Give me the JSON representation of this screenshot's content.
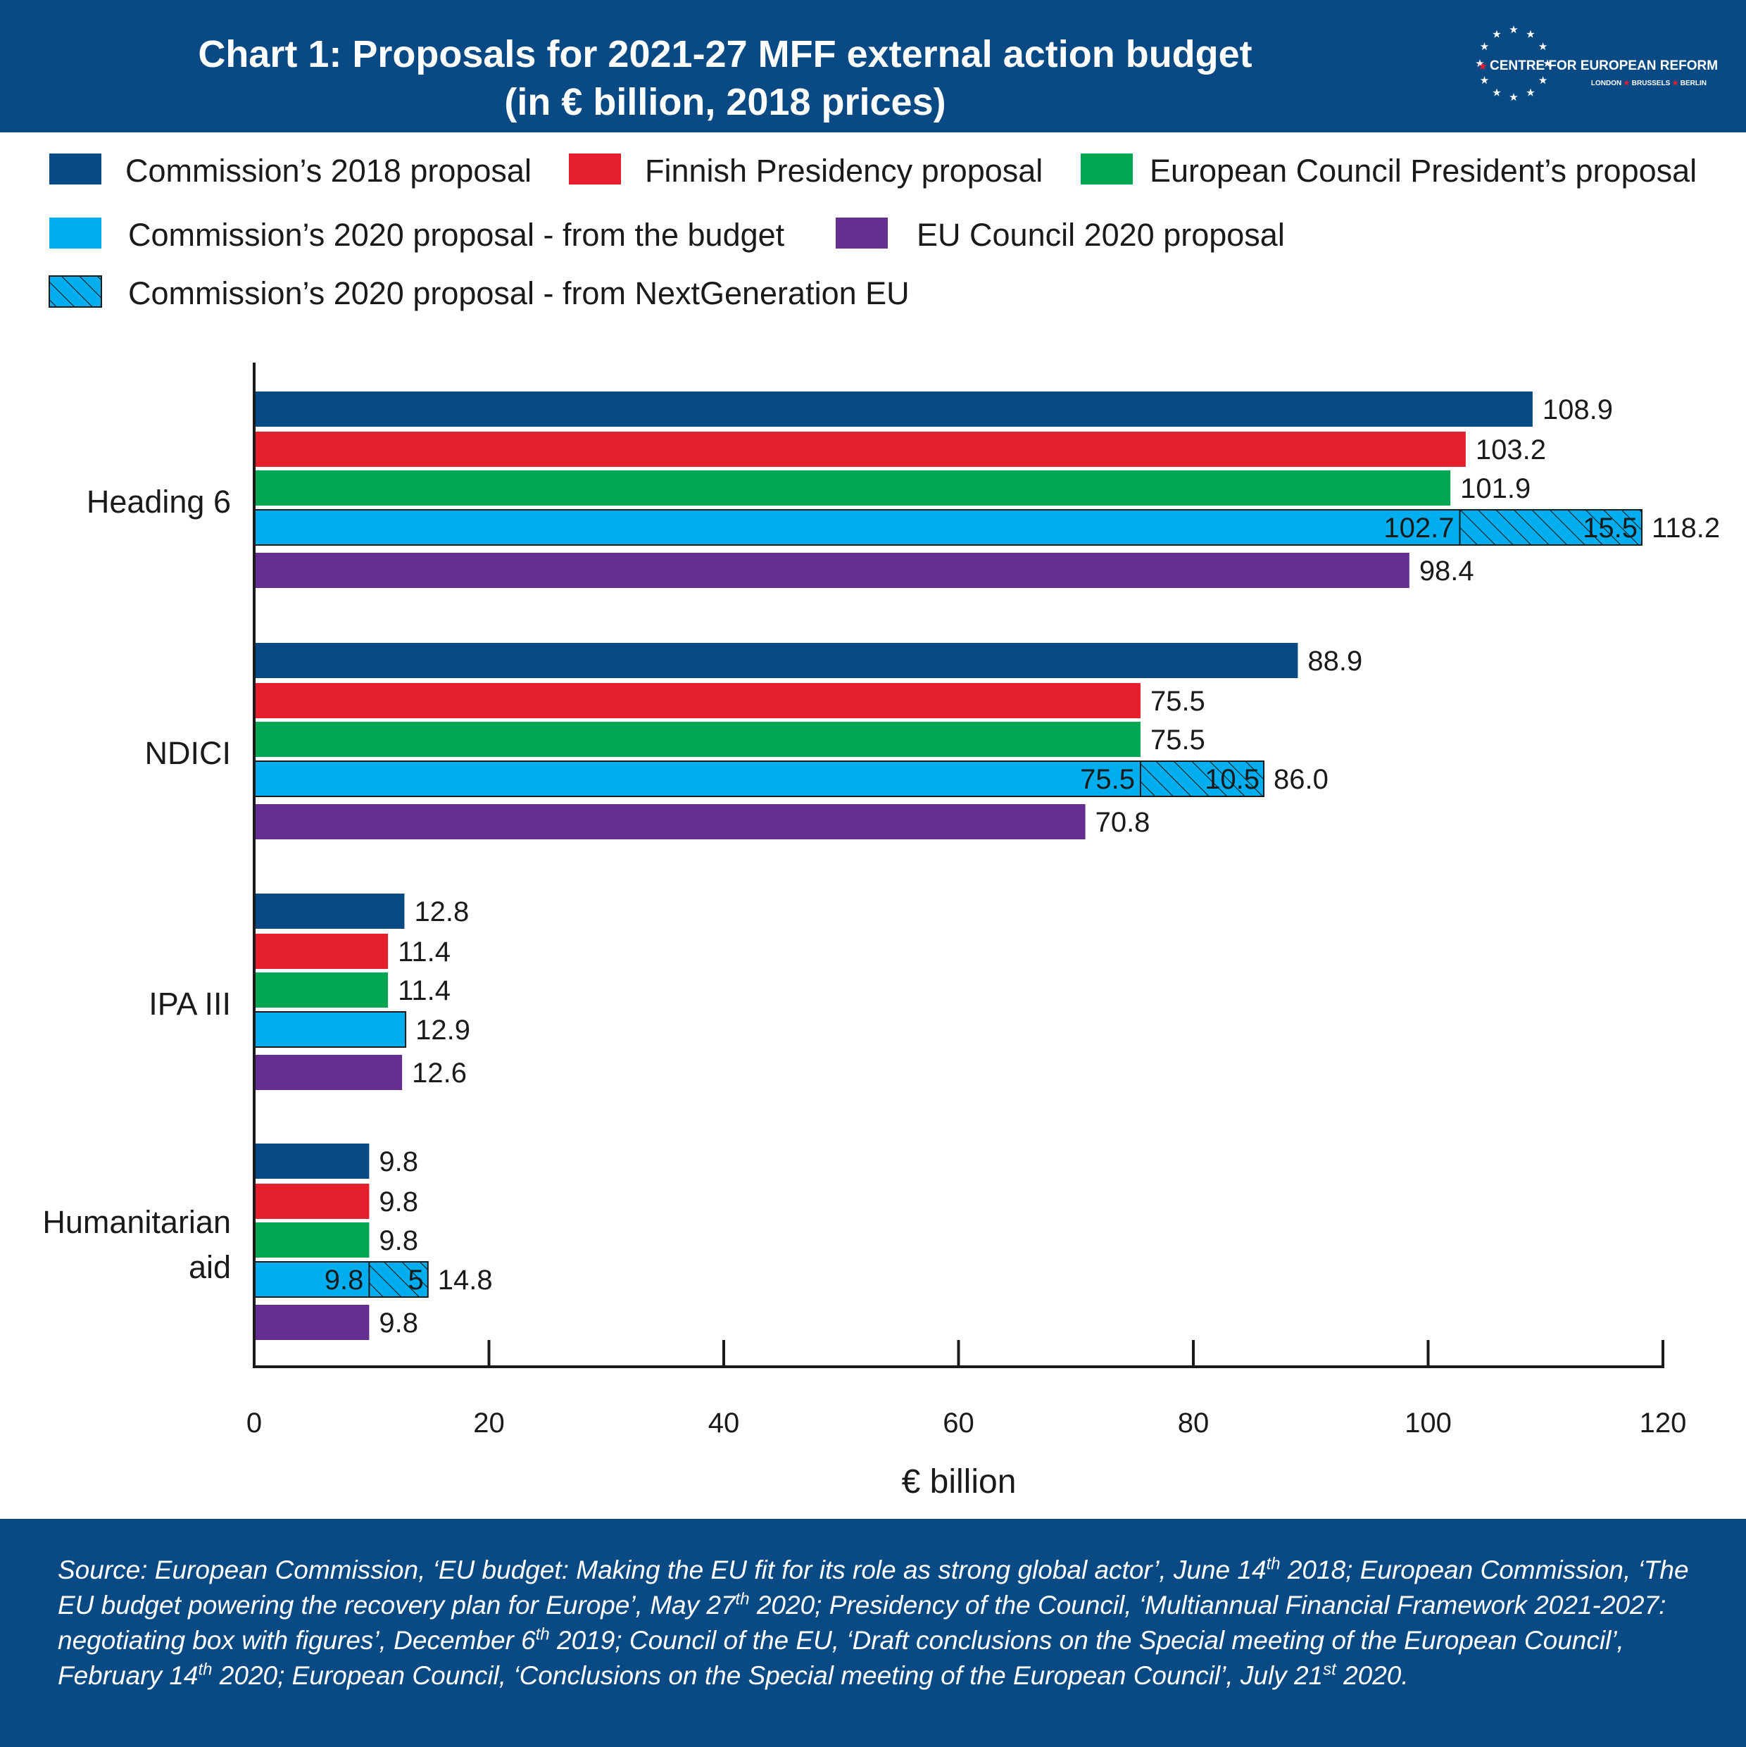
{
  "header": {
    "title_line1": "Chart 1: Proposals for 2021-27 MFF external action budget",
    "title_line2": "(in € billion, 2018 prices)"
  },
  "logo": {
    "name": "CENTRE FOR EUROPEAN REFORM",
    "cities": [
      "LONDON",
      "BRUSSELS",
      "BERLIN"
    ],
    "star_color": "#ffffff",
    "accent_color": "#e41e2b"
  },
  "chart_data": {
    "type": "bar",
    "orientation": "horizontal",
    "categories": [
      "Heading 6",
      "NDICI",
      "IPA III",
      "Humanitarian aid"
    ],
    "series": [
      {
        "name": "Commission’s 2018 proposal",
        "color": "#0a4a84",
        "values": [
          108.9,
          88.9,
          12.8,
          9.8
        ],
        "labels": [
          "108.9",
          "88.9",
          "12.8",
          "9.8"
        ]
      },
      {
        "name": "Finnish Presidency proposal",
        "color": "#e41e2b",
        "values": [
          103.2,
          75.5,
          11.4,
          9.8
        ],
        "labels": [
          "103.2",
          "75.5",
          "11.4",
          "9.8"
        ]
      },
      {
        "name": "European Council President’s proposal",
        "color": "#00a651",
        "values": [
          101.9,
          75.5,
          11.4,
          9.8
        ],
        "labels": [
          "101.9",
          "75.5",
          "11.4",
          "9.8"
        ]
      },
      {
        "name": "Commission’s 2020 proposal - from the budget",
        "color": "#00aeef",
        "values": [
          102.7,
          75.5,
          12.9,
          9.8
        ],
        "inner_labels": [
          "102.7",
          "75.5",
          "",
          "9.8"
        ]
      },
      {
        "name": "Commission’s 2020 proposal - from NextGeneration EU",
        "color": "#00aeef",
        "pattern": "hatched",
        "stacked_on": "Commission’s 2020 proposal - from the budget",
        "values": [
          15.5,
          10.5,
          0,
          5
        ],
        "inner_labels": [
          "15.5",
          "10.5",
          "",
          "5"
        ]
      },
      {
        "name": "EU Council 2020 proposal",
        "color": "#662d91",
        "values": [
          98.4,
          70.8,
          12.6,
          9.8
        ],
        "labels": [
          "98.4",
          "70.8",
          "12.6",
          "9.8"
        ]
      }
    ],
    "stack_totals": [
      "118.2",
      "86.0",
      "12.9",
      "14.8"
    ],
    "x_ticks": [
      0,
      20,
      40,
      60,
      80,
      100,
      120
    ],
    "xlim": [
      0,
      120
    ],
    "xlabel": "€ billion",
    "ylabel": "",
    "grid": false,
    "legend_position": "top"
  },
  "footer": {
    "source_segments": [
      "Source: European Commission, ‘EU budget: Making the EU fit for its role as strong global actor’, June 14",
      "th",
      " 2018; European Commission, ‘The EU budget powering the recovery plan for Europe’, May 27",
      "th",
      " 2020; Presidency of the Council, ‘Multiannual Financial Framework 2021-2027: negotiating box with figures’, December 6",
      "th",
      " 2019; Council of the EU, ‘Draft conclusions on the Special meeting of the European Council’, February 14",
      "th",
      " 2020; European Council, ‘Conclusions on the Special meeting of the European Council’, July 21",
      "st",
      " 2020."
    ]
  }
}
